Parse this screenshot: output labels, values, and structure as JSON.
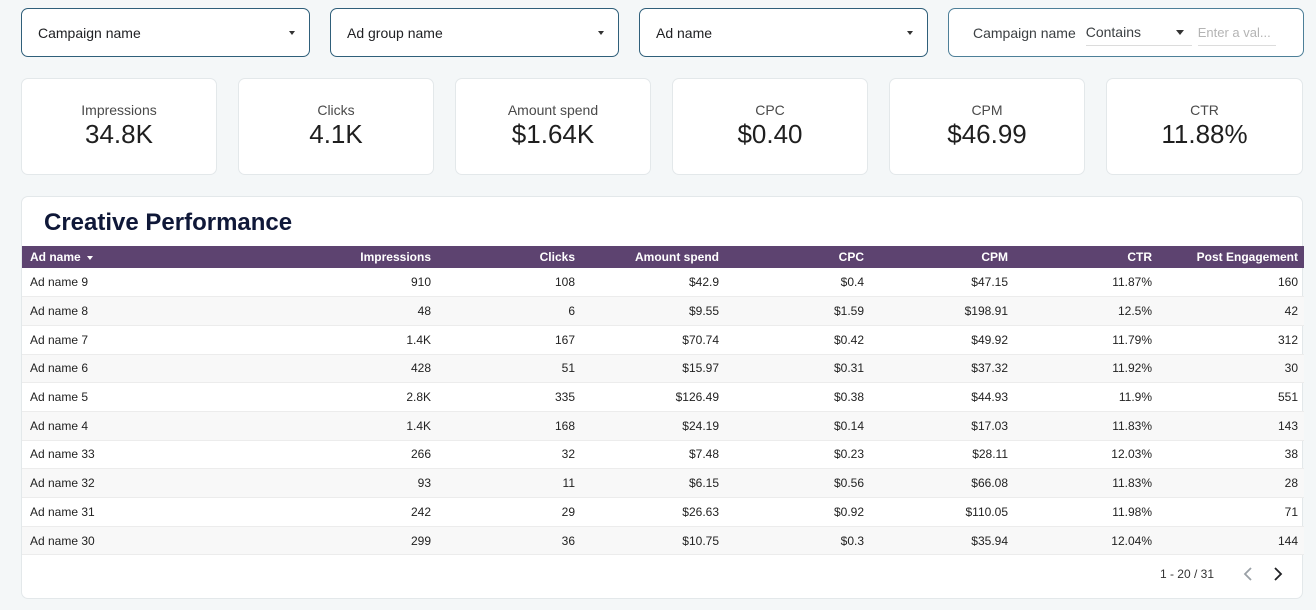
{
  "filters": {
    "campaign": {
      "label": "Campaign name"
    },
    "ad_group": {
      "label": "Ad group name"
    },
    "ad": {
      "label": "Ad name"
    },
    "advanced": {
      "field": "Campaign name",
      "operator": "Contains",
      "placeholder": "Enter a val..."
    }
  },
  "kpis": [
    {
      "label": "Impressions",
      "value": "34.8K"
    },
    {
      "label": "Clicks",
      "value": "4.1K"
    },
    {
      "label": "Amount spend",
      "value": "$1.64K"
    },
    {
      "label": "CPC",
      "value": "$0.40"
    },
    {
      "label": "CPM",
      "value": "$46.99"
    },
    {
      "label": "CTR",
      "value": "11.88%"
    }
  ],
  "table": {
    "title": "Creative Performance",
    "columns": [
      "Ad name",
      "Impressions",
      "Clicks",
      "Amount spend",
      "CPC",
      "CPM",
      "CTR",
      "Post Engagement"
    ],
    "rows": [
      [
        "Ad name 9",
        "910",
        "108",
        "$42.9",
        "$0.4",
        "$47.15",
        "11.87%",
        "160"
      ],
      [
        "Ad name 8",
        "48",
        "6",
        "$9.55",
        "$1.59",
        "$198.91",
        "12.5%",
        "42"
      ],
      [
        "Ad name 7",
        "1.4K",
        "167",
        "$70.74",
        "$0.42",
        "$49.92",
        "11.79%",
        "312"
      ],
      [
        "Ad name 6",
        "428",
        "51",
        "$15.97",
        "$0.31",
        "$37.32",
        "11.92%",
        "30"
      ],
      [
        "Ad name 5",
        "2.8K",
        "335",
        "$126.49",
        "$0.38",
        "$44.93",
        "11.9%",
        "551"
      ],
      [
        "Ad name 4",
        "1.4K",
        "168",
        "$24.19",
        "$0.14",
        "$17.03",
        "11.83%",
        "143"
      ],
      [
        "Ad name 33",
        "266",
        "32",
        "$7.48",
        "$0.23",
        "$28.11",
        "12.03%",
        "38"
      ],
      [
        "Ad name 32",
        "93",
        "11",
        "$6.15",
        "$0.56",
        "$66.08",
        "11.83%",
        "28"
      ],
      [
        "Ad name 31",
        "242",
        "29",
        "$26.63",
        "$0.92",
        "$110.05",
        "11.98%",
        "71"
      ],
      [
        "Ad name 30",
        "299",
        "36",
        "$10.75",
        "$0.3",
        "$35.94",
        "12.04%",
        "144"
      ]
    ],
    "pagination": {
      "range": "1 - 20 / 31"
    }
  }
}
